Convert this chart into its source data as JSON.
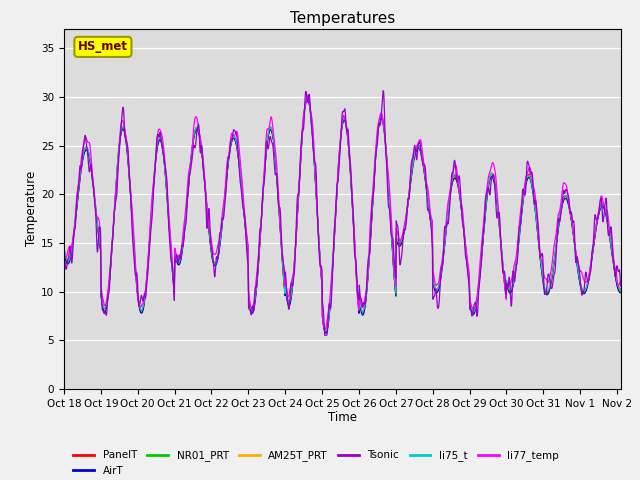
{
  "title": "Temperatures",
  "xlabel": "Time",
  "ylabel": "Temperature",
  "ylim": [
    0,
    37
  ],
  "yticks": [
    0,
    5,
    10,
    15,
    20,
    25,
    30,
    35
  ],
  "plot_bg_color": "#dcdcdc",
  "fig_bg_color": "#f0f0f0",
  "series": {
    "PanelT": {
      "color": "#ff0000",
      "lw": 0.8
    },
    "AirT": {
      "color": "#0000cc",
      "lw": 0.8
    },
    "NR01_PRT": {
      "color": "#00cc00",
      "lw": 0.8
    },
    "AM25T_PRT": {
      "color": "#ffaa00",
      "lw": 0.8
    },
    "Tsonic": {
      "color": "#9900cc",
      "lw": 0.9
    },
    "li75_t": {
      "color": "#00cccc",
      "lw": 0.8
    },
    "li77_temp": {
      "color": "#ff00ff",
      "lw": 0.9
    }
  },
  "legend_box_label": "HS_met",
  "legend_box_color": "#ffff00",
  "legend_box_edge_color": "#999900",
  "xtick_labels": [
    "Oct 18",
    "Oct 19",
    "Oct 20",
    "Oct 21",
    "Oct 22",
    "Oct 23",
    "Oct 24",
    "Oct 25",
    "Oct 26",
    "Oct 27",
    "Oct 28",
    "Oct 29",
    "Oct 30",
    "Oct 31",
    "Nov 1",
    "Nov 2"
  ],
  "title_fontsize": 11,
  "tick_fontsize": 7.5,
  "label_fontsize": 8.5
}
